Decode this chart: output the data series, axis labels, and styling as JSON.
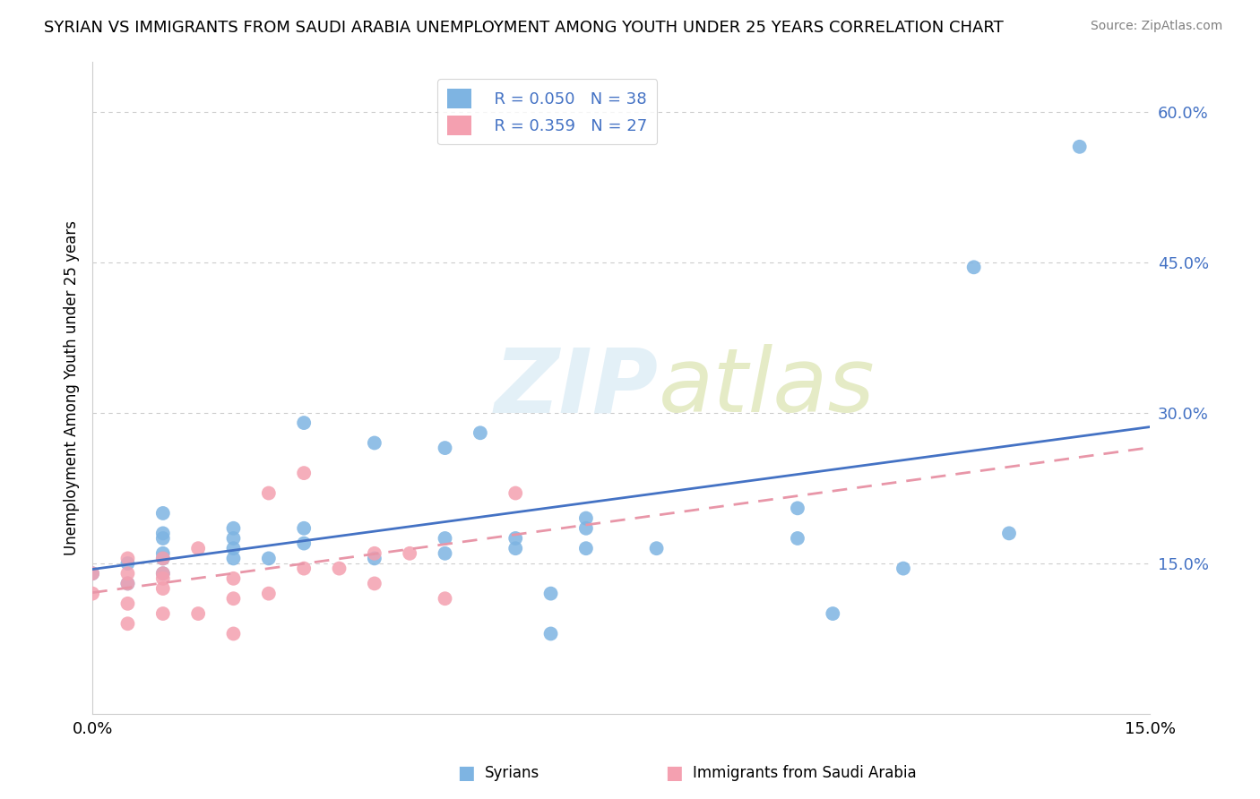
{
  "title": "SYRIAN VS IMMIGRANTS FROM SAUDI ARABIA UNEMPLOYMENT AMONG YOUTH UNDER 25 YEARS CORRELATION CHART",
  "source": "Source: ZipAtlas.com",
  "ylabel": "Unemployment Among Youth under 25 years",
  "xrange": [
    0.0,
    0.15
  ],
  "yrange": [
    0.0,
    0.65
  ],
  "legend_label1": "Syrians",
  "legend_label2": "Immigrants from Saudi Arabia",
  "R1": "0.050",
  "N1": "38",
  "R2": "0.359",
  "N2": "27",
  "color_blue": "#7EB4E2",
  "color_pink": "#F4A0B0",
  "color_blue_text": "#4472C4",
  "color_line_blue": "#4472C4",
  "color_line_pink": "#E896A8",
  "syrians_x": [
    0.0,
    0.005,
    0.005,
    0.01,
    0.01,
    0.01,
    0.01,
    0.01,
    0.01,
    0.02,
    0.02,
    0.02,
    0.02,
    0.025,
    0.03,
    0.03,
    0.03,
    0.04,
    0.04,
    0.05,
    0.05,
    0.05,
    0.055,
    0.06,
    0.06,
    0.065,
    0.065,
    0.07,
    0.07,
    0.07,
    0.08,
    0.1,
    0.1,
    0.105,
    0.115,
    0.125,
    0.13,
    0.14
  ],
  "syrians_y": [
    0.14,
    0.13,
    0.15,
    0.155,
    0.14,
    0.16,
    0.175,
    0.18,
    0.2,
    0.155,
    0.165,
    0.175,
    0.185,
    0.155,
    0.17,
    0.185,
    0.29,
    0.155,
    0.27,
    0.16,
    0.175,
    0.265,
    0.28,
    0.165,
    0.175,
    0.08,
    0.12,
    0.165,
    0.185,
    0.195,
    0.165,
    0.175,
    0.205,
    0.1,
    0.145,
    0.445,
    0.18,
    0.565
  ],
  "saudi_x": [
    0.0,
    0.0,
    0.005,
    0.005,
    0.005,
    0.005,
    0.005,
    0.01,
    0.01,
    0.01,
    0.01,
    0.01,
    0.015,
    0.015,
    0.02,
    0.02,
    0.02,
    0.025,
    0.025,
    0.03,
    0.03,
    0.035,
    0.04,
    0.04,
    0.045,
    0.05,
    0.06
  ],
  "saudi_y": [
    0.12,
    0.14,
    0.09,
    0.11,
    0.13,
    0.14,
    0.155,
    0.1,
    0.125,
    0.135,
    0.14,
    0.155,
    0.1,
    0.165,
    0.08,
    0.115,
    0.135,
    0.12,
    0.22,
    0.145,
    0.24,
    0.145,
    0.13,
    0.16,
    0.16,
    0.115,
    0.22
  ],
  "ytick_vals": [
    0.15,
    0.3,
    0.45,
    0.6
  ],
  "ytick_labels": [
    "15.0%",
    "30.0%",
    "45.0%",
    "60.0%"
  ]
}
